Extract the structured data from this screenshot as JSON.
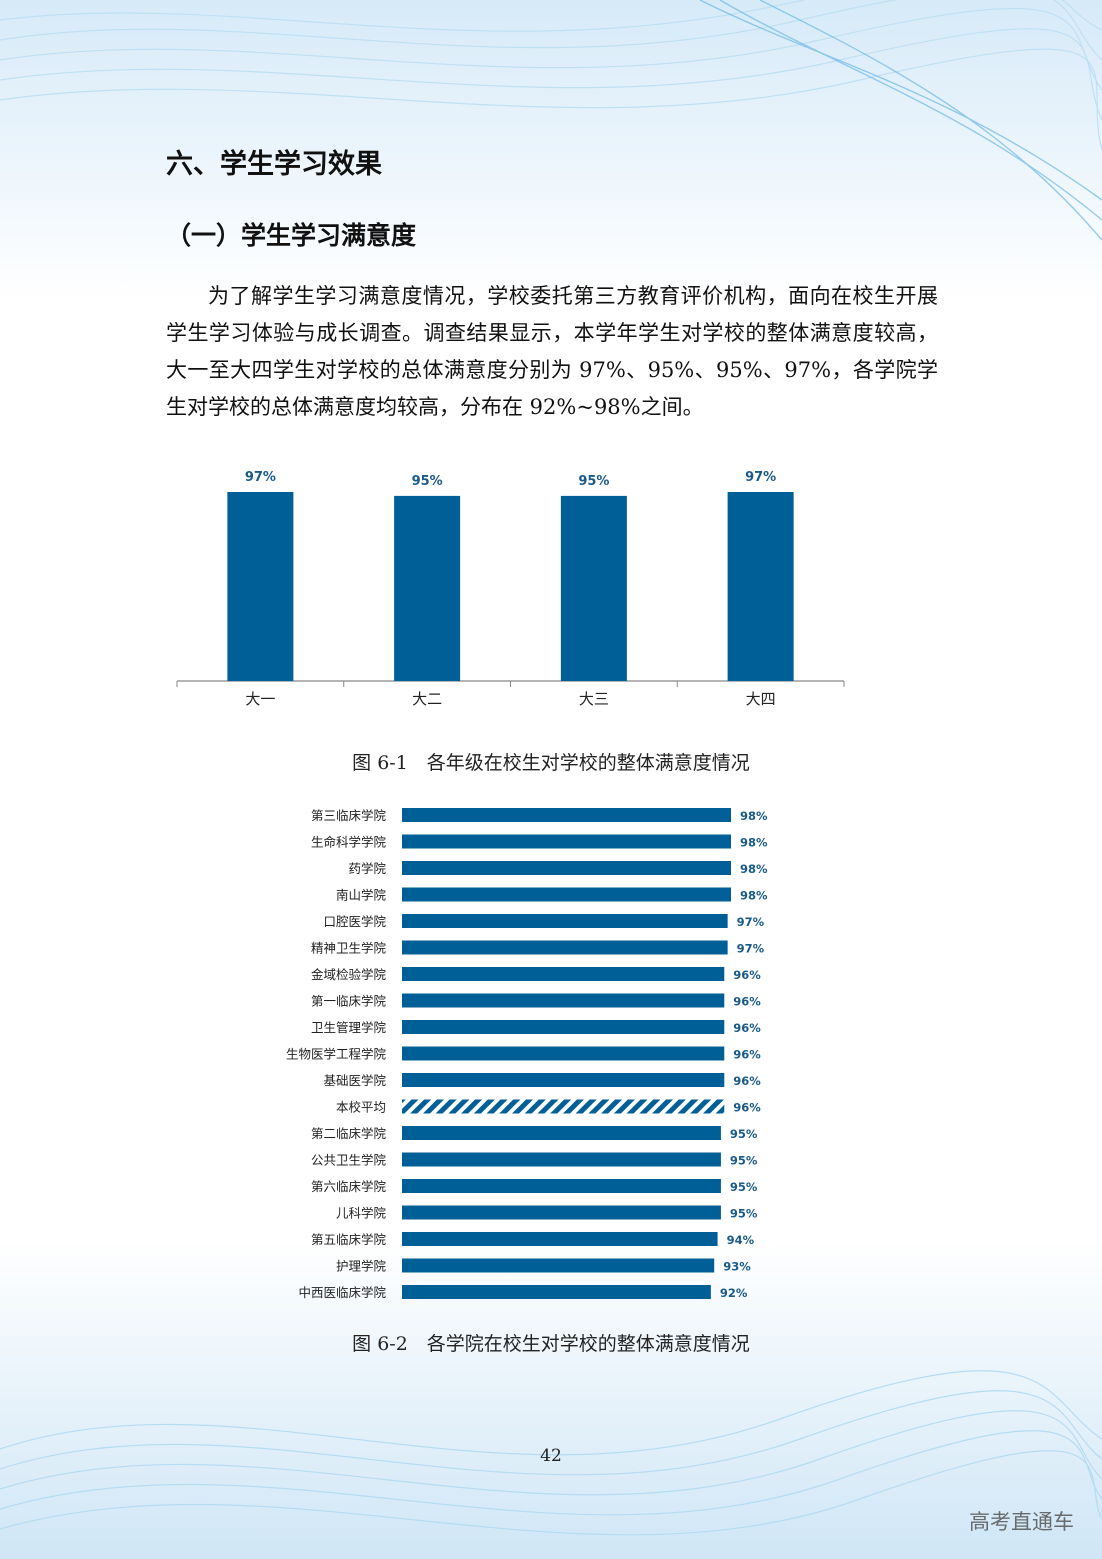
{
  "heading": "六、学生学习效果",
  "subheading": "（一）学生学习满意度",
  "paragraph": "为了解学生学习满意度情况，学校委托第三方教育评价机构，面向在校生开展学生学习体验与成长调查。调查结果显示，本学年学生对学校的整体满意度较高，大一至大四学生对学校的总体满意度分别为 97%、95%、95%、97%，各学院学生对学校的总体满意度均较高，分布在 92%~98%之间。",
  "figure1_caption": "图 6-1　各年级在校生对学校的整体满意度情况",
  "figure2_caption": "图 6-2　各学院在校生对学校的整体满意度情况",
  "page_number": "42",
  "watermark": "高考直通车",
  "colors": {
    "bar": "#005f96",
    "label": "#1a5b8a",
    "axis": "#888888"
  },
  "chart_data": [
    {
      "type": "bar",
      "categories": [
        "大一",
        "大二",
        "大三",
        "大四"
      ],
      "values": [
        97,
        95,
        95,
        97
      ],
      "value_labels": [
        "97%",
        "95%",
        "95%",
        "97%"
      ]
    },
    {
      "type": "bar",
      "orientation": "horizontal",
      "categories": [
        "第三临床学院",
        "生命科学学院",
        "药学院",
        "南山学院",
        "口腔医学院",
        "精神卫生学院",
        "金域检验学院",
        "第一临床学院",
        "卫生管理学院",
        "生物医学工程学院",
        "基础医学院",
        "本校平均",
        "第二临床学院",
        "公共卫生学院",
        "第六临床学院",
        "儿科学院",
        "第五临床学院",
        "护理学院",
        "中西医临床学院"
      ],
      "values": [
        98,
        98,
        98,
        98,
        97,
        97,
        96,
        96,
        96,
        96,
        96,
        96,
        95,
        95,
        95,
        95,
        94,
        93,
        92
      ],
      "value_labels": [
        "98%",
        "98%",
        "98%",
        "98%",
        "97%",
        "97%",
        "96%",
        "96%",
        "96%",
        "96%",
        "96%",
        "96%",
        "95%",
        "95%",
        "95%",
        "95%",
        "94%",
        "93%",
        "92%"
      ],
      "highlight": "本校平均"
    }
  ]
}
